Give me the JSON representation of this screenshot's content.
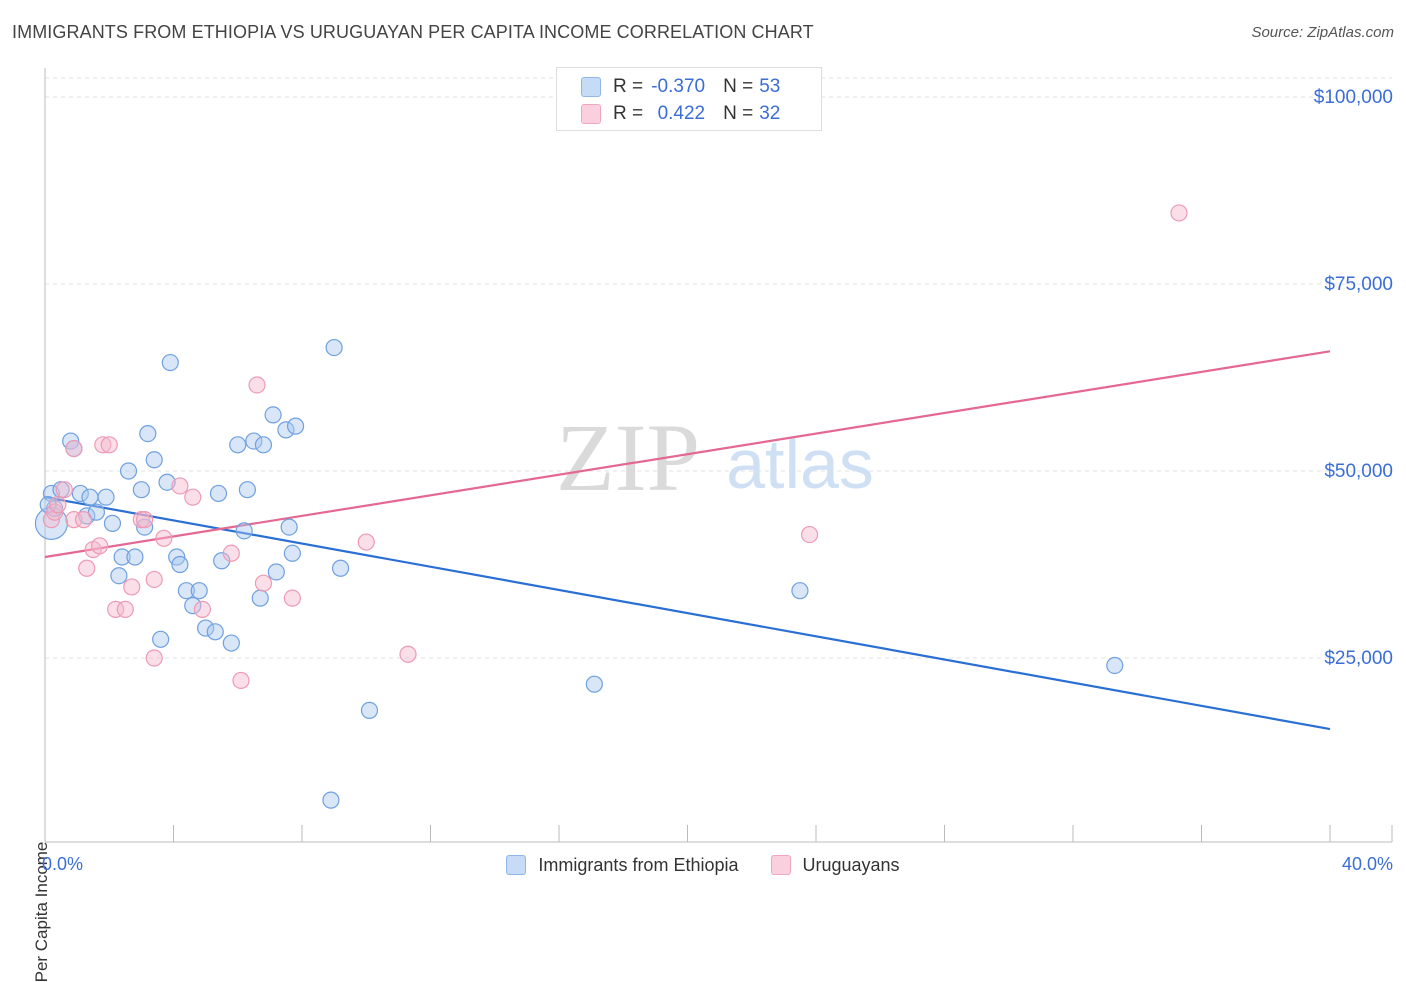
{
  "header": {
    "title": "IMMIGRANTS FROM ETHIOPIA VS URUGUAYAN PER CAPITA INCOME CORRELATION CHART",
    "source": "Source: ZipAtlas.com"
  },
  "watermark": {
    "zip": "ZIP",
    "atlas": "atlas"
  },
  "legend_top": {
    "rows": [
      {
        "r_label": "R =",
        "r_value": "-0.370",
        "n_label": "N =",
        "n_value": "53",
        "color": "#a8c8f0"
      },
      {
        "r_label": "R =",
        "r_value": "0.422",
        "n_label": "N =",
        "n_value": "32",
        "color": "#f5b8cc"
      }
    ]
  },
  "legend_bottom": {
    "items": [
      {
        "label": "Immigrants from Ethiopia",
        "color": "#a8c8f0"
      },
      {
        "label": "Uruguayans",
        "color": "#f5b8cc"
      }
    ]
  },
  "chart_data": {
    "type": "scatter",
    "title": "IMMIGRANTS FROM ETHIOPIA VS URUGUAYAN PER CAPITA INCOME CORRELATION CHART",
    "xlabel": "",
    "ylabel": "Per Capita Income",
    "xlim": [
      0,
      40
    ],
    "ylim": [
      0,
      105000
    ],
    "x_tick_labels": [
      "0.0%",
      "40.0%"
    ],
    "y_ticks": [
      25000,
      50000,
      75000,
      100000
    ],
    "y_tick_labels": [
      "$25,000",
      "$50,000",
      "$75,000",
      "$100,000"
    ],
    "grid": true,
    "series": [
      {
        "name": "Immigrants from Ethiopia",
        "color": "#6fa0e0",
        "fill": "#a8c8f0",
        "trend": {
          "x": [
            0,
            40
          ],
          "y": [
            46500,
            15500
          ],
          "color": "#2a6fd4"
        },
        "points": [
          [
            0.2,
            43000
          ],
          [
            0.2,
            47000
          ],
          [
            0.3,
            45000
          ],
          [
            0.5,
            47500
          ],
          [
            0.8,
            54000
          ],
          [
            0.9,
            53000
          ],
          [
            1.1,
            47000
          ],
          [
            1.3,
            44000
          ],
          [
            1.4,
            46500
          ],
          [
            1.6,
            44500
          ],
          [
            1.9,
            46500
          ],
          [
            2.1,
            43000
          ],
          [
            2.3,
            36000
          ],
          [
            2.4,
            38500
          ],
          [
            2.6,
            50000
          ],
          [
            2.8,
            38500
          ],
          [
            3.0,
            47500
          ],
          [
            3.1,
            42500
          ],
          [
            3.2,
            55000
          ],
          [
            3.4,
            51500
          ],
          [
            3.6,
            27500
          ],
          [
            3.8,
            48500
          ],
          [
            3.9,
            64500
          ],
          [
            4.1,
            38500
          ],
          [
            4.2,
            37500
          ],
          [
            4.4,
            34000
          ],
          [
            4.6,
            32000
          ],
          [
            4.8,
            34000
          ],
          [
            5.0,
            29000
          ],
          [
            5.3,
            28500
          ],
          [
            5.4,
            47000
          ],
          [
            5.5,
            38000
          ],
          [
            5.8,
            27000
          ],
          [
            6.0,
            53500
          ],
          [
            6.2,
            42000
          ],
          [
            6.3,
            47500
          ],
          [
            6.5,
            54000
          ],
          [
            6.7,
            33000
          ],
          [
            6.8,
            53500
          ],
          [
            7.1,
            57500
          ],
          [
            7.2,
            36500
          ],
          [
            7.5,
            55500
          ],
          [
            7.6,
            42500
          ],
          [
            7.7,
            39000
          ],
          [
            7.8,
            56000
          ],
          [
            8.9,
            6000
          ],
          [
            9.0,
            66500
          ],
          [
            9.2,
            37000
          ],
          [
            10.1,
            18000
          ],
          [
            17.1,
            21500
          ],
          [
            23.5,
            34000
          ],
          [
            33.3,
            24000
          ],
          [
            0.1,
            45500
          ]
        ]
      },
      {
        "name": "Uruguayans",
        "color": "#ee9ab4",
        "fill": "#f5b8cc",
        "trend": {
          "x": [
            0,
            40
          ],
          "y": [
            38500,
            66000
          ],
          "color": "#e46891"
        },
        "points": [
          [
            0.2,
            43500
          ],
          [
            0.3,
            44500
          ],
          [
            0.4,
            45500
          ],
          [
            0.6,
            47500
          ],
          [
            0.9,
            53000
          ],
          [
            0.9,
            43500
          ],
          [
            1.2,
            43500
          ],
          [
            1.3,
            37000
          ],
          [
            1.5,
            39500
          ],
          [
            1.7,
            40000
          ],
          [
            1.8,
            53500
          ],
          [
            2.0,
            53500
          ],
          [
            2.2,
            31500
          ],
          [
            2.5,
            31500
          ],
          [
            2.7,
            34500
          ],
          [
            3.0,
            43500
          ],
          [
            3.1,
            43500
          ],
          [
            3.4,
            35500
          ],
          [
            3.4,
            25000
          ],
          [
            3.7,
            41000
          ],
          [
            4.2,
            48000
          ],
          [
            4.6,
            46500
          ],
          [
            4.9,
            31500
          ],
          [
            5.8,
            39000
          ],
          [
            6.1,
            22000
          ],
          [
            6.6,
            61500
          ],
          [
            6.8,
            35000
          ],
          [
            7.7,
            33000
          ],
          [
            10.0,
            40500
          ],
          [
            11.3,
            25500
          ],
          [
            23.8,
            41500
          ],
          [
            35.3,
            84500
          ]
        ]
      }
    ]
  }
}
